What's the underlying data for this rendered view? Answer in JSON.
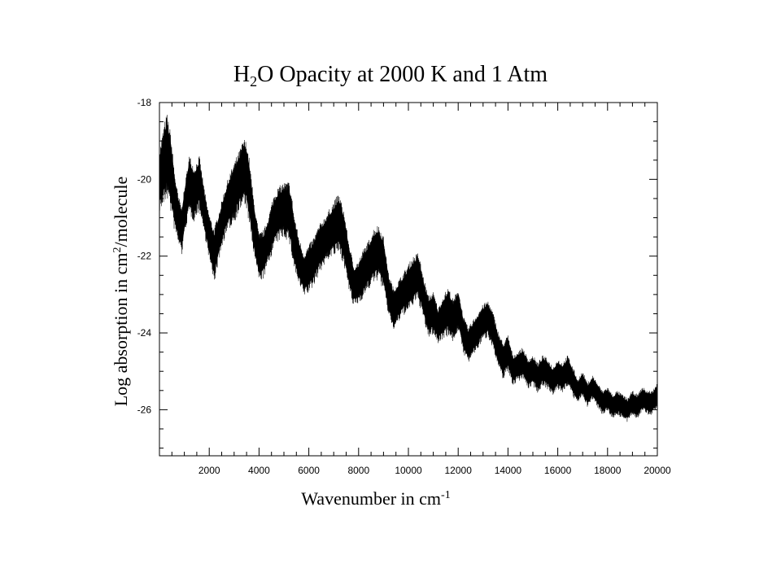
{
  "chart_data": {
    "type": "line",
    "title": {
      "pre": "H",
      "sub": "2",
      "post": "O Opacity at 2000 K and 1 Atm"
    },
    "xlabel": {
      "pre": "Wavenumber in cm",
      "sup": "-1"
    },
    "ylabel": {
      "pre": "Log absorption in cm",
      "sup": "2",
      "post": "/molecule"
    },
    "xlim": [
      0,
      20000
    ],
    "ylim": [
      -27.2,
      -18
    ],
    "x_ticks": [
      2000,
      4000,
      6000,
      8000,
      10000,
      12000,
      14000,
      16000,
      18000,
      20000
    ],
    "y_ticks": [
      -18,
      -20,
      -22,
      -24,
      -26
    ],
    "grid": false,
    "series": [
      {
        "color": "#000000",
        "x": [
          0,
          150,
          300,
          450,
          600,
          750,
          900,
          1050,
          1200,
          1400,
          1600,
          1750,
          1900,
          2050,
          2200,
          2400,
          2600,
          2800,
          3000,
          3200,
          3400,
          3500,
          3600,
          3800,
          4000,
          4200,
          4400,
          4600,
          4800,
          5000,
          5200,
          5300,
          5400,
          5600,
          5800,
          6000,
          6200,
          6400,
          6600,
          6800,
          7000,
          7200,
          7400,
          7600,
          7800,
          8000,
          8200,
          8400,
          8600,
          8800,
          9000,
          9200,
          9400,
          9600,
          9800,
          10000,
          10200,
          10400,
          10600,
          10800,
          11000,
          11200,
          11400,
          11600,
          11800,
          12000,
          12200,
          12400,
          12600,
          12800,
          13000,
          13200,
          13400,
          13600,
          13800,
          14000,
          14200,
          14400,
          14600,
          14800,
          15000,
          15200,
          15400,
          15600,
          15800,
          16000,
          16200,
          16400,
          16600,
          16800,
          17000,
          17200,
          17400,
          17600,
          17800,
          18000,
          18200,
          18400,
          18600,
          18800,
          19000,
          19200,
          19400,
          19600,
          19800,
          20000
        ],
        "y_low": [
          -20.5,
          -20.3,
          -20.0,
          -20.4,
          -21.0,
          -21.4,
          -21.7,
          -21.0,
          -20.6,
          -20.8,
          -20.5,
          -21.0,
          -21.5,
          -22.0,
          -22.4,
          -21.8,
          -21.3,
          -21.0,
          -20.8,
          -20.5,
          -20.3,
          -20.4,
          -20.8,
          -21.7,
          -22.4,
          -22.3,
          -21.9,
          -21.5,
          -21.3,
          -21.2,
          -21.3,
          -21.6,
          -22.0,
          -22.5,
          -22.8,
          -22.7,
          -22.5,
          -22.2,
          -22.0,
          -21.8,
          -21.7,
          -21.6,
          -21.9,
          -22.6,
          -23.1,
          -23.0,
          -22.8,
          -22.6,
          -22.4,
          -22.3,
          -22.6,
          -23.3,
          -23.7,
          -23.5,
          -23.3,
          -23.2,
          -23.0,
          -22.9,
          -23.4,
          -23.9,
          -23.8,
          -24.1,
          -23.9,
          -23.8,
          -24.0,
          -23.7,
          -24.3,
          -24.6,
          -24.4,
          -24.2,
          -24.0,
          -23.9,
          -24.2,
          -24.7,
          -25.0,
          -24.8,
          -25.2,
          -25.1,
          -25.0,
          -25.3,
          -25.2,
          -25.4,
          -25.2,
          -25.3,
          -25.5,
          -25.3,
          -25.4,
          -25.2,
          -25.5,
          -25.7,
          -25.5,
          -25.8,
          -25.6,
          -25.8,
          -26.0,
          -25.9,
          -26.1,
          -26.0,
          -26.1,
          -26.2,
          -26.0,
          -26.1,
          -25.9,
          -26.0,
          -26.0,
          -25.8
        ],
        "y_high": [
          -19.5,
          -19.0,
          -18.6,
          -19.1,
          -20.0,
          -20.6,
          -20.9,
          -20.2,
          -19.6,
          -19.9,
          -19.6,
          -20.2,
          -20.8,
          -21.2,
          -21.5,
          -21.0,
          -20.5,
          -20.1,
          -19.8,
          -19.5,
          -19.2,
          -19.3,
          -19.7,
          -20.8,
          -21.6,
          -21.5,
          -21.1,
          -20.6,
          -20.4,
          -20.3,
          -20.3,
          -20.6,
          -21.1,
          -21.7,
          -22.1,
          -21.9,
          -21.7,
          -21.4,
          -21.2,
          -21.0,
          -20.8,
          -20.6,
          -21.0,
          -21.8,
          -22.4,
          -22.3,
          -22.0,
          -21.8,
          -21.5,
          -21.4,
          -21.7,
          -22.6,
          -23.0,
          -22.8,
          -22.6,
          -22.4,
          -22.2,
          -22.1,
          -22.7,
          -23.2,
          -23.1,
          -23.5,
          -23.2,
          -23.0,
          -23.3,
          -23.0,
          -23.7,
          -24.0,
          -23.8,
          -23.6,
          -23.4,
          -23.3,
          -23.6,
          -24.1,
          -24.4,
          -24.2,
          -24.7,
          -24.6,
          -24.5,
          -24.8,
          -24.7,
          -24.9,
          -24.7,
          -24.8,
          -25.0,
          -24.8,
          -24.9,
          -24.7,
          -25.0,
          -25.3,
          -25.1,
          -25.4,
          -25.2,
          -25.4,
          -25.6,
          -25.5,
          -25.7,
          -25.6,
          -25.7,
          -25.8,
          -25.6,
          -25.7,
          -25.5,
          -25.6,
          -25.6,
          -25.4
        ]
      }
    ]
  }
}
